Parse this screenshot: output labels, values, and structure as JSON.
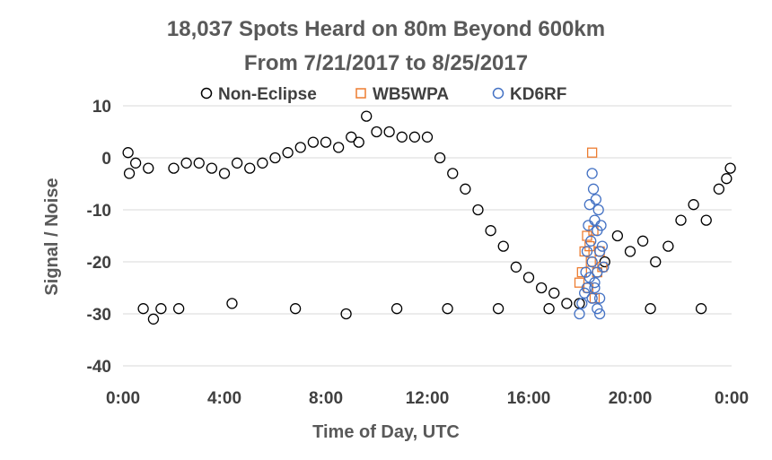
{
  "chart_data": {
    "type": "scatter",
    "title": "18,037 Spots Heard on 80m Beyond 600km",
    "subtitle": "From 7/21/2017 to 8/25/2017",
    "xlabel": "Time of Day, UTC",
    "ylabel": "Signal / Noise",
    "xlim": [
      0,
      24
    ],
    "ylim": [
      -40,
      10
    ],
    "x_ticks": [
      0,
      4,
      8,
      12,
      16,
      20,
      24
    ],
    "x_tick_labels": [
      "0:00",
      "4:00",
      "8:00",
      "12:00",
      "16:00",
      "20:00",
      "0:00"
    ],
    "y_ticks": [
      10,
      0,
      -10,
      -20,
      -30,
      -40
    ],
    "y_tick_labels": [
      "10",
      "0",
      "-10",
      "-20",
      "-30",
      "-40"
    ],
    "grid": true,
    "legend_position": "top",
    "legend": [
      "Non-Eclipse",
      "WB5WPA",
      "KD6RF"
    ],
    "series": [
      {
        "name": "Non-Eclipse",
        "marker": "circle",
        "color": "#000000",
        "x": [
          0.2,
          0.25,
          0.5,
          1.0,
          1.2,
          1.5,
          2.0,
          2.5,
          3.0,
          3.5,
          4.0,
          4.5,
          5.0,
          5.5,
          6.0,
          6.5,
          7.0,
          7.5,
          8.0,
          8.5,
          9.0,
          9.3,
          9.6,
          10.0,
          10.5,
          11.0,
          11.5,
          12.0,
          12.5,
          13.0,
          13.5,
          14.0,
          14.5,
          15.0,
          15.5,
          16.0,
          16.5,
          17.0,
          17.5,
          18.0,
          19.0,
          19.5,
          20.0,
          20.5,
          21.0,
          21.5,
          22.0,
          22.5,
          23.0,
          23.5,
          23.8,
          23.95,
          0.8,
          2.2,
          4.3,
          6.8,
          8.8,
          10.8,
          12.8,
          14.8,
          16.8,
          20.8,
          22.8
        ],
        "y": [
          1,
          -3,
          -1,
          -2,
          -31,
          -29,
          -2,
          -1,
          -1,
          -2,
          -3,
          -1,
          -2,
          -1,
          0,
          1,
          2,
          3,
          3,
          2,
          4,
          3,
          8,
          5,
          5,
          4,
          4,
          4,
          0,
          -3,
          -6,
          -10,
          -14,
          -17,
          -21,
          -23,
          -25,
          -26,
          -28,
          -28,
          -20,
          -15,
          -18,
          -16,
          -20,
          -17,
          -12,
          -9,
          -12,
          -6,
          -4,
          -2,
          -29,
          -29,
          -28,
          -29,
          -30,
          -29,
          -29,
          -29,
          -29,
          -29,
          -29
        ]
      },
      {
        "name": "WB5WPA",
        "marker": "square",
        "color": "#ed7d31",
        "x": [
          18.0,
          18.1,
          18.2,
          18.3,
          18.35,
          18.4,
          18.45,
          18.5,
          18.55,
          18.6,
          18.7,
          18.8,
          18.9
        ],
        "y": [
          -24,
          -22,
          -18,
          -15,
          -25,
          -17,
          -20,
          1,
          -14,
          -27,
          -22,
          -18,
          -21
        ]
      },
      {
        "name": "KD6RF",
        "marker": "circle",
        "color": "#4472c4",
        "x": [
          18.0,
          18.1,
          18.2,
          18.25,
          18.3,
          18.35,
          18.4,
          18.45,
          18.5,
          18.5,
          18.55,
          18.6,
          18.6,
          18.65,
          18.7,
          18.7,
          18.75,
          18.8,
          18.8,
          18.85,
          18.9,
          18.95,
          18.3,
          18.5,
          18.7,
          18.4,
          18.6,
          18.8
        ],
        "y": [
          -30,
          -28,
          -26,
          -22,
          -18,
          -13,
          -9,
          -16,
          -3,
          -20,
          -6,
          -12,
          -25,
          -8,
          -14,
          -22,
          -10,
          -18,
          -27,
          -13,
          -17,
          -21,
          -25,
          -27,
          -29,
          -23,
          -24,
          -30
        ]
      }
    ]
  }
}
